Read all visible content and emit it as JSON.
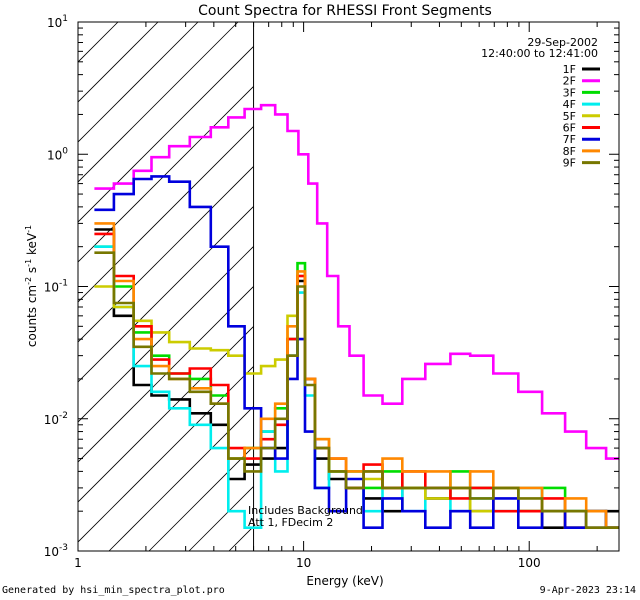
{
  "chart_data": {
    "type": "line",
    "title": "Count Spectra for RHESSI Front Segments",
    "xlabel": "Energy (keV)",
    "ylabel": "counts cm-2 s-1 keV-1",
    "xscale": "log",
    "yscale": "log",
    "xlim": [
      1,
      250
    ],
    "ylim": [
      0.001,
      10
    ],
    "x_tick_labels": [
      "1",
      "10",
      "100"
    ],
    "y_tick_labels": [
      "10-3",
      "10-2",
      "10-1",
      "100",
      "101"
    ],
    "date": "29-Sep-2002",
    "time_range": "12:40:00 to 12:41:00",
    "attenuator_line_energy": 6.0,
    "annotations": [
      "Includes Background",
      "Att 1, FDecim 2"
    ],
    "series": [
      {
        "name": "1F",
        "color": "#000000",
        "x": [
          1.3,
          1.6,
          1.95,
          2.3,
          2.8,
          3.5,
          4.3,
          5.0,
          6.0,
          7.0,
          8.0,
          9.0,
          9.8,
          10.5,
          12.0,
          14.0,
          17.0,
          20.0,
          25.0,
          30.0,
          40.0,
          50.0,
          60.0,
          80.0,
          100.0,
          130.0,
          160.0,
          200.0,
          240.0
        ],
        "y": [
          0.27,
          0.06,
          0.018,
          0.015,
          0.014,
          0.011,
          0.009,
          0.0035,
          0.0045,
          0.005,
          0.006,
          0.03,
          0.11,
          0.02,
          0.005,
          0.0035,
          0.003,
          0.0025,
          0.002,
          0.003,
          0.0025,
          0.003,
          0.002,
          0.003,
          0.002,
          0.0015,
          0.002,
          0.0015,
          0.002
        ]
      },
      {
        "name": "2F",
        "color": "#ff00ff",
        "x": [
          1.3,
          1.6,
          1.95,
          2.3,
          2.8,
          3.5,
          4.3,
          5.0,
          6.0,
          7.0,
          8.0,
          9.0,
          10.0,
          11.0,
          12.0,
          13.5,
          15.0,
          17.0,
          20.0,
          25.0,
          30.0,
          40.0,
          50.0,
          60.0,
          80.0,
          100.0,
          130.0,
          160.0,
          200.0,
          240.0
        ],
        "y": [
          0.55,
          0.6,
          0.75,
          0.95,
          1.15,
          1.35,
          1.6,
          1.9,
          2.2,
          2.35,
          2.0,
          1.5,
          1.0,
          0.6,
          0.3,
          0.12,
          0.05,
          0.03,
          0.015,
          0.013,
          0.02,
          0.026,
          0.031,
          0.03,
          0.022,
          0.016,
          0.011,
          0.008,
          0.006,
          0.005
        ]
      },
      {
        "name": "3F",
        "color": "#00dd00",
        "x": [
          1.3,
          1.6,
          1.95,
          2.3,
          2.8,
          3.5,
          4.3,
          5.0,
          6.0,
          7.0,
          8.0,
          9.0,
          9.8,
          10.5,
          12.0,
          14.0,
          17.0,
          20.0,
          25.0,
          30.0,
          40.0,
          50.0,
          60.0,
          80.0,
          100.0,
          130.0,
          160.0,
          200.0,
          240.0
        ],
        "y": [
          0.2,
          0.1,
          0.045,
          0.03,
          0.022,
          0.02,
          0.015,
          0.005,
          0.006,
          0.008,
          0.012,
          0.04,
          0.15,
          0.02,
          0.006,
          0.004,
          0.004,
          0.003,
          0.004,
          0.003,
          0.003,
          0.004,
          0.003,
          0.003,
          0.002,
          0.003,
          0.002,
          0.002,
          0.0015
        ]
      },
      {
        "name": "4F",
        "color": "#00eeee",
        "x": [
          1.3,
          1.6,
          1.95,
          2.3,
          2.8,
          3.5,
          4.3,
          5.0,
          6.0,
          7.0,
          8.0,
          9.0,
          9.8,
          10.5,
          12.0,
          14.0,
          17.0,
          20.0,
          25.0,
          30.0,
          40.0,
          50.0,
          60.0,
          80.0,
          100.0,
          130.0,
          160.0,
          200.0,
          240.0
        ],
        "y": [
          0.2,
          0.07,
          0.025,
          0.016,
          0.012,
          0.009,
          0.006,
          0.002,
          0.0015,
          0.008,
          0.004,
          0.03,
          0.09,
          0.015,
          0.003,
          0.004,
          0.003,
          0.002,
          0.003,
          0.002,
          0.003,
          0.002,
          0.0025,
          0.002,
          0.003,
          0.002,
          0.0015,
          0.002,
          0.0015
        ]
      },
      {
        "name": "5F",
        "color": "#cccc00",
        "x": [
          1.3,
          1.6,
          1.95,
          2.3,
          2.8,
          3.5,
          4.3,
          5.0,
          6.0,
          7.0,
          8.0,
          9.0,
          9.8,
          10.5,
          12.0,
          14.0,
          17.0,
          20.0,
          25.0,
          30.0,
          40.0,
          50.0,
          60.0,
          80.0,
          100.0,
          130.0,
          160.0,
          200.0,
          240.0
        ],
        "y": [
          0.1,
          0.07,
          0.055,
          0.045,
          0.038,
          0.034,
          0.033,
          0.03,
          0.022,
          0.025,
          0.028,
          0.06,
          0.12,
          0.02,
          0.007,
          0.004,
          0.003,
          0.0035,
          0.003,
          0.003,
          0.0025,
          0.003,
          0.002,
          0.003,
          0.002,
          0.002,
          0.0015,
          0.002,
          0.0015
        ]
      },
      {
        "name": "6F",
        "color": "#ff0000",
        "x": [
          1.3,
          1.6,
          1.95,
          2.3,
          2.8,
          3.5,
          4.3,
          5.0,
          6.0,
          7.0,
          8.0,
          9.0,
          9.8,
          10.5,
          12.0,
          14.0,
          17.0,
          20.0,
          25.0,
          30.0,
          40.0,
          50.0,
          60.0,
          80.0,
          100.0,
          130.0,
          160.0,
          200.0,
          240.0
        ],
        "y": [
          0.25,
          0.12,
          0.05,
          0.028,
          0.022,
          0.024,
          0.018,
          0.006,
          0.005,
          0.007,
          0.009,
          0.04,
          0.12,
          0.02,
          0.006,
          0.005,
          0.003,
          0.0045,
          0.003,
          0.004,
          0.003,
          0.0025,
          0.003,
          0.002,
          0.002,
          0.0025,
          0.0015,
          0.002,
          0.0015
        ]
      },
      {
        "name": "7F",
        "color": "#0000dd",
        "x": [
          1.3,
          1.6,
          1.95,
          2.3,
          2.8,
          3.5,
          4.3,
          5.0,
          6.0,
          7.0,
          8.0,
          9.0,
          9.8,
          10.5,
          12.0,
          14.0,
          17.0,
          20.0,
          25.0,
          30.0,
          40.0,
          50.0,
          60.0,
          80.0,
          100.0,
          130.0,
          160.0,
          200.0,
          240.0
        ],
        "y": [
          0.38,
          0.5,
          0.65,
          0.68,
          0.62,
          0.4,
          0.2,
          0.05,
          0.012,
          0.006,
          0.005,
          0.02,
          0.04,
          0.008,
          0.003,
          0.002,
          0.0035,
          0.0015,
          0.0025,
          0.002,
          0.0015,
          0.002,
          0.0015,
          0.0025,
          0.0015,
          0.002,
          0.0015,
          0.002,
          0.0015
        ]
      },
      {
        "name": "8F",
        "color": "#ff8800",
        "x": [
          1.3,
          1.6,
          1.95,
          2.3,
          2.8,
          3.5,
          4.3,
          5.0,
          6.0,
          7.0,
          8.0,
          9.0,
          9.8,
          10.5,
          12.0,
          14.0,
          17.0,
          20.0,
          25.0,
          30.0,
          40.0,
          50.0,
          60.0,
          80.0,
          100.0,
          130.0,
          160.0,
          200.0,
          240.0
        ],
        "y": [
          0.3,
          0.11,
          0.04,
          0.025,
          0.02,
          0.017,
          0.013,
          0.005,
          0.006,
          0.01,
          0.013,
          0.05,
          0.13,
          0.02,
          0.007,
          0.005,
          0.004,
          0.004,
          0.005,
          0.004,
          0.004,
          0.003,
          0.004,
          0.003,
          0.003,
          0.002,
          0.0025,
          0.002,
          0.0015
        ]
      },
      {
        "name": "9F",
        "color": "#777700",
        "x": [
          1.3,
          1.6,
          1.95,
          2.3,
          2.8,
          3.5,
          4.3,
          5.0,
          6.0,
          7.0,
          8.0,
          9.0,
          9.8,
          10.5,
          12.0,
          14.0,
          17.0,
          20.0,
          25.0,
          30.0,
          40.0,
          50.0,
          60.0,
          80.0,
          100.0,
          130.0,
          160.0,
          200.0,
          240.0
        ],
        "y": [
          0.18,
          0.075,
          0.035,
          0.022,
          0.02,
          0.016,
          0.013,
          0.005,
          0.004,
          0.006,
          0.01,
          0.03,
          0.1,
          0.018,
          0.006,
          0.004,
          0.003,
          0.004,
          0.003,
          0.003,
          0.003,
          0.003,
          0.0025,
          0.003,
          0.0025,
          0.002,
          0.002,
          0.0015,
          0.0015
        ]
      }
    ]
  },
  "footer": {
    "left": "Generated by hsi_min_spectra_plot.pro",
    "right": "9-Apr-2023 23:14"
  }
}
